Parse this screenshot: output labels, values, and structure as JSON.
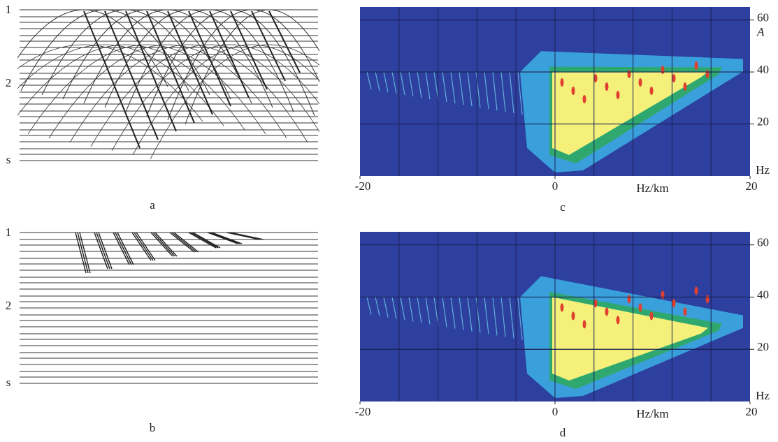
{
  "traces": [
    {
      "caption": "a",
      "time_labels": [
        "1",
        "2",
        "s"
      ]
    },
    {
      "caption": "b",
      "time_labels": [
        "1",
        "2",
        "s"
      ]
    }
  ],
  "spectra": [
    {
      "caption": "c",
      "axis_title": "A",
      "x_unit": "Hz/km",
      "y_unit": "Hz",
      "xlim": [
        -20,
        20
      ],
      "ylim": [
        0,
        65
      ],
      "xticks": [
        -20,
        0,
        20
      ],
      "yticks": [
        20,
        40,
        60
      ]
    },
    {
      "caption": "d",
      "x_unit": "Hz/km",
      "y_unit": "Hz",
      "xlim": [
        -20,
        20
      ],
      "ylim": [
        0,
        65
      ],
      "xticks": [
        -20,
        0,
        20
      ],
      "yticks": [
        20,
        40,
        60
      ]
    }
  ]
}
